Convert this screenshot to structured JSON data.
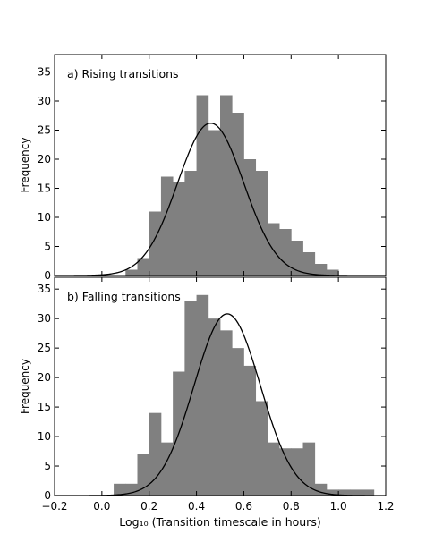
{
  "chart_data": [
    {
      "type": "bar",
      "panel_label": "a) Rising transitions",
      "ylabel": "Frequency",
      "ylim": [
        0,
        38
      ],
      "xlim": [
        -0.2,
        1.2
      ],
      "yticks": [
        0,
        5,
        10,
        15,
        20,
        25,
        30,
        35
      ],
      "bin_width": 0.05,
      "bin_edges_start": [
        0.1,
        0.15,
        0.2,
        0.25,
        0.3,
        0.35,
        0.4,
        0.45,
        0.5,
        0.55,
        0.6,
        0.65,
        0.7,
        0.75,
        0.8,
        0.85,
        0.9,
        0.95
      ],
      "values": [
        1,
        3,
        11,
        17,
        16,
        18,
        31,
        25,
        31,
        28,
        20,
        18,
        9,
        8,
        6,
        4,
        2,
        1
      ],
      "fit": {
        "type": "gaussian",
        "mean": 0.46,
        "sd": 0.14,
        "peak": 26.2
      }
    },
    {
      "type": "bar",
      "panel_label": "b) Falling transitions",
      "ylabel": "Frequency",
      "xlabel": "Log₁₀ (Transition timescale in hours)",
      "ylim": [
        0,
        37
      ],
      "xlim": [
        -0.2,
        1.2
      ],
      "yticks": [
        0,
        5,
        10,
        15,
        20,
        25,
        30,
        35
      ],
      "xticks": [
        -0.2,
        0.0,
        0.2,
        0.4,
        0.6,
        0.8,
        1.0,
        1.2
      ],
      "xtick_labels": [
        "−0.2",
        "0.0",
        "0.2",
        "0.4",
        "0.6",
        "0.8",
        "1.0",
        "1.2"
      ],
      "bin_width": 0.05,
      "bin_edges_start": [
        0.05,
        0.1,
        0.15,
        0.2,
        0.25,
        0.3,
        0.35,
        0.4,
        0.45,
        0.5,
        0.55,
        0.6,
        0.65,
        0.7,
        0.75,
        0.8,
        0.85,
        0.9,
        0.95,
        1.0,
        1.05,
        1.1
      ],
      "values": [
        2,
        2,
        7,
        14,
        9,
        21,
        33,
        34,
        30,
        28,
        25,
        22,
        16,
        9,
        8,
        8,
        9,
        2,
        1,
        1,
        1,
        1
      ],
      "fit": {
        "type": "gaussian",
        "mean": 0.53,
        "sd": 0.14,
        "peak": 30.8
      }
    }
  ]
}
